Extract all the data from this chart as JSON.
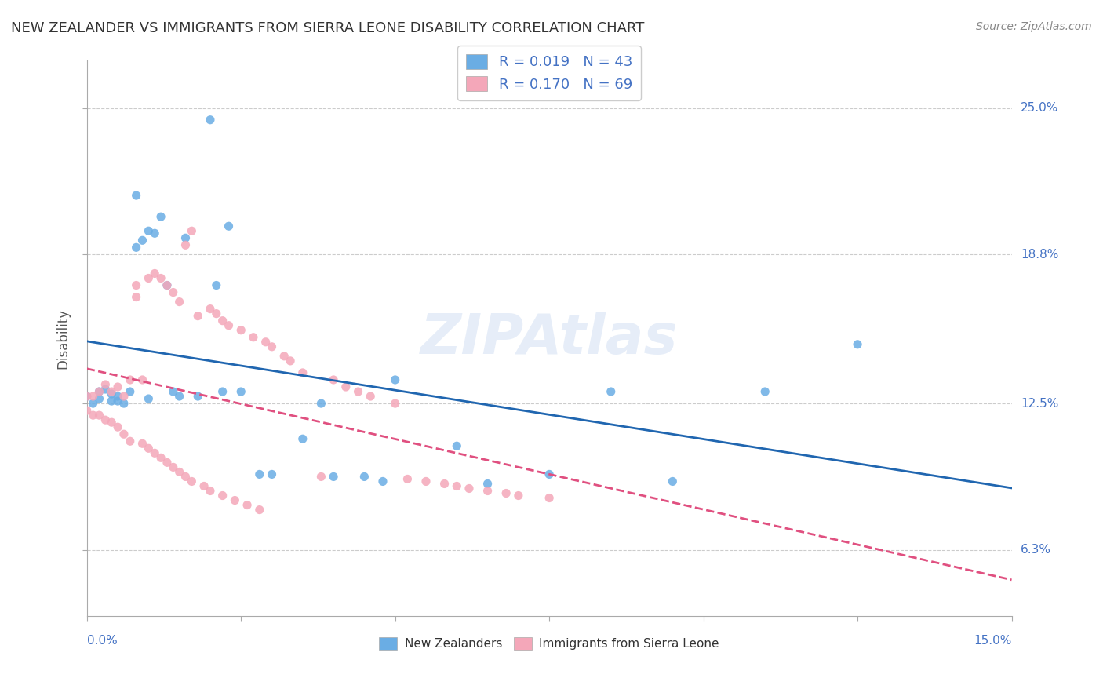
{
  "title": "NEW ZEALANDER VS IMMIGRANTS FROM SIERRA LEONE DISABILITY CORRELATION CHART",
  "source": "Source: ZipAtlas.com",
  "ylabel": "Disability",
  "ytick_labels": [
    "6.3%",
    "12.5%",
    "18.8%",
    "25.0%"
  ],
  "ytick_values": [
    0.063,
    0.125,
    0.188,
    0.25
  ],
  "xmin": 0.0,
  "xmax": 0.15,
  "ymin": 0.035,
  "ymax": 0.27,
  "legend1_text": "R = 0.019   N = 43",
  "legend2_text": "R = 0.170   N = 69",
  "blue_color": "#6aade4",
  "pink_color": "#f4a7b9",
  "blue_line_color": "#2066b0",
  "pink_line_color": "#e05080",
  "nz_x": [
    0.0,
    0.001,
    0.002,
    0.002,
    0.003,
    0.004,
    0.004,
    0.005,
    0.005,
    0.006,
    0.007,
    0.008,
    0.008,
    0.009,
    0.01,
    0.01,
    0.011,
    0.012,
    0.013,
    0.014,
    0.015,
    0.016,
    0.018,
    0.02,
    0.021,
    0.022,
    0.023,
    0.025,
    0.028,
    0.03,
    0.035,
    0.038,
    0.04,
    0.045,
    0.048,
    0.05,
    0.06,
    0.065,
    0.075,
    0.085,
    0.095,
    0.11,
    0.125
  ],
  "nz_y": [
    0.128,
    0.125,
    0.127,
    0.13,
    0.131,
    0.126,
    0.129,
    0.126,
    0.128,
    0.125,
    0.13,
    0.213,
    0.191,
    0.194,
    0.198,
    0.127,
    0.197,
    0.204,
    0.175,
    0.13,
    0.128,
    0.195,
    0.128,
    0.245,
    0.175,
    0.13,
    0.2,
    0.13,
    0.095,
    0.095,
    0.11,
    0.125,
    0.094,
    0.094,
    0.092,
    0.135,
    0.107,
    0.091,
    0.095,
    0.13,
    0.092,
    0.13,
    0.15
  ],
  "sl_x": [
    0.0,
    0.0,
    0.001,
    0.001,
    0.002,
    0.002,
    0.003,
    0.003,
    0.004,
    0.004,
    0.005,
    0.005,
    0.006,
    0.006,
    0.007,
    0.007,
    0.008,
    0.008,
    0.009,
    0.009,
    0.01,
    0.01,
    0.011,
    0.011,
    0.012,
    0.012,
    0.013,
    0.013,
    0.014,
    0.014,
    0.015,
    0.015,
    0.016,
    0.016,
    0.017,
    0.017,
    0.018,
    0.019,
    0.02,
    0.02,
    0.021,
    0.022,
    0.022,
    0.023,
    0.024,
    0.025,
    0.026,
    0.027,
    0.028,
    0.029,
    0.03,
    0.032,
    0.033,
    0.035,
    0.038,
    0.04,
    0.042,
    0.044,
    0.046,
    0.05,
    0.052,
    0.055,
    0.058,
    0.06,
    0.062,
    0.065,
    0.068,
    0.07,
    0.075
  ],
  "sl_y": [
    0.128,
    0.122,
    0.128,
    0.12,
    0.13,
    0.12,
    0.133,
    0.118,
    0.13,
    0.117,
    0.132,
    0.115,
    0.128,
    0.112,
    0.135,
    0.109,
    0.17,
    0.175,
    0.135,
    0.108,
    0.178,
    0.106,
    0.18,
    0.104,
    0.178,
    0.102,
    0.175,
    0.1,
    0.172,
    0.098,
    0.168,
    0.096,
    0.192,
    0.094,
    0.198,
    0.092,
    0.162,
    0.09,
    0.165,
    0.088,
    0.163,
    0.16,
    0.086,
    0.158,
    0.084,
    0.156,
    0.082,
    0.153,
    0.08,
    0.151,
    0.149,
    0.145,
    0.143,
    0.138,
    0.094,
    0.135,
    0.132,
    0.13,
    0.128,
    0.125,
    0.093,
    0.092,
    0.091,
    0.09,
    0.089,
    0.088,
    0.087,
    0.086,
    0.085
  ]
}
